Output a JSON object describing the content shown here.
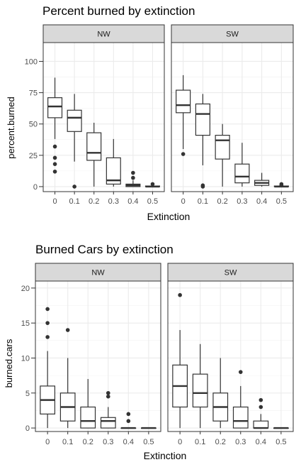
{
  "chart_data": [
    {
      "type": "boxplot",
      "title": "Percent burned by extinction",
      "xlabel": "Extinction",
      "ylabel": "percent.burned",
      "categories": [
        "0",
        "0.1",
        "0.2",
        "0.3",
        "0.4",
        "0.5"
      ],
      "ylim": [
        -4,
        115
      ],
      "yticks": [
        0,
        25,
        50,
        75,
        100
      ],
      "yticklabels": [
        "0",
        "25",
        "50",
        "75",
        "100"
      ],
      "grid": true,
      "facets": [
        {
          "name": "NW",
          "boxes": [
            {
              "category": "0",
              "whisker_low": 38,
              "q1": 55,
              "median": 64,
              "q3": 71,
              "whisker_high": 87,
              "outliers": [
                32,
                23,
                18,
                12
              ]
            },
            {
              "category": "0.1",
              "whisker_low": 20,
              "q1": 44,
              "median": 55,
              "q3": 61,
              "whisker_high": 74,
              "outliers": [
                0
              ]
            },
            {
              "category": "0.2",
              "whisker_low": 0,
              "q1": 21,
              "median": 27,
              "q3": 43,
              "whisker_high": 51,
              "outliers": []
            },
            {
              "category": "0.3",
              "whisker_low": 0,
              "q1": 2,
              "median": 5,
              "q3": 23,
              "whisker_high": 38,
              "outliers": []
            },
            {
              "category": "0.4",
              "whisker_low": 0,
              "q1": 0,
              "median": 1,
              "q3": 2,
              "whisker_high": 5,
              "outliers": [
                7,
                11
              ]
            },
            {
              "category": "0.5",
              "whisker_low": 0,
              "q1": 0,
              "median": 0,
              "q3": 0.5,
              "whisker_high": 1,
              "outliers": [
                2
              ]
            }
          ]
        },
        {
          "name": "SW",
          "boxes": [
            {
              "category": "0",
              "whisker_low": 30,
              "q1": 59,
              "median": 65,
              "q3": 77,
              "whisker_high": 89,
              "outliers": [
                26
              ]
            },
            {
              "category": "0.1",
              "whisker_low": 17,
              "q1": 41,
              "median": 58,
              "q3": 66,
              "whisker_high": 74,
              "outliers": [
                0,
                1
              ]
            },
            {
              "category": "0.2",
              "whisker_low": 0,
              "q1": 22,
              "median": 37,
              "q3": 41,
              "whisker_high": 50,
              "outliers": []
            },
            {
              "category": "0.3",
              "whisker_low": 0,
              "q1": 3,
              "median": 8,
              "q3": 18,
              "whisker_high": 35,
              "outliers": []
            },
            {
              "category": "0.4",
              "whisker_low": 0,
              "q1": 1,
              "median": 3,
              "q3": 5,
              "whisker_high": 11,
              "outliers": []
            },
            {
              "category": "0.5",
              "whisker_low": 0,
              "q1": 0,
              "median": 0,
              "q3": 0.5,
              "whisker_high": 1,
              "outliers": [
                1,
                2
              ]
            }
          ]
        }
      ]
    },
    {
      "type": "boxplot",
      "title": "Burned Cars by extinction",
      "xlabel": "Extinction",
      "ylabel": "burned.cars",
      "categories": [
        "0",
        "0.1",
        "0.2",
        "0.3",
        "0.4",
        "0.5"
      ],
      "ylim": [
        -0.5,
        21
      ],
      "yticks": [
        0,
        5,
        10,
        15,
        20
      ],
      "yticklabels": [
        "0",
        "5",
        "10",
        "15",
        "20"
      ],
      "grid": true,
      "facets": [
        {
          "name": "NW",
          "boxes": [
            {
              "category": "0",
              "whisker_low": 0,
              "q1": 2,
              "median": 4,
              "q3": 6,
              "whisker_high": 11,
              "outliers": [
                13,
                15,
                17
              ]
            },
            {
              "category": "0.1",
              "whisker_low": 0,
              "q1": 1,
              "median": 3,
              "q3": 5,
              "whisker_high": 10,
              "outliers": [
                14
              ]
            },
            {
              "category": "0.2",
              "whisker_low": 0,
              "q1": 0,
              "median": 1,
              "q3": 3,
              "whisker_high": 7,
              "outliers": []
            },
            {
              "category": "0.3",
              "whisker_low": 0,
              "q1": 0,
              "median": 1,
              "q3": 1.5,
              "whisker_high": 3,
              "outliers": [
                4.5,
                5
              ]
            },
            {
              "category": "0.4",
              "whisker_low": 0,
              "q1": 0,
              "median": 0,
              "q3": 0,
              "whisker_high": 0,
              "outliers": [
                1,
                2
              ]
            },
            {
              "category": "0.5",
              "whisker_low": 0,
              "q1": 0,
              "median": 0,
              "q3": 0,
              "whisker_high": 0,
              "outliers": []
            }
          ]
        },
        {
          "name": "SW",
          "boxes": [
            {
              "category": "0",
              "whisker_low": 0,
              "q1": 3,
              "median": 6,
              "q3": 9,
              "whisker_high": 14,
              "outliers": [
                19
              ]
            },
            {
              "category": "0.1",
              "whisker_low": 0,
              "q1": 3,
              "median": 5,
              "q3": 7.7,
              "whisker_high": 12,
              "outliers": []
            },
            {
              "category": "0.2",
              "whisker_low": 0,
              "q1": 1,
              "median": 3,
              "q3": 5,
              "whisker_high": 10,
              "outliers": []
            },
            {
              "category": "0.3",
              "whisker_low": 0,
              "q1": 0,
              "median": 1,
              "q3": 3,
              "whisker_high": 6,
              "outliers": [
                8
              ]
            },
            {
              "category": "0.4",
              "whisker_low": 0,
              "q1": 0,
              "median": 0,
              "q3": 1,
              "whisker_high": 2,
              "outliers": [
                3,
                4
              ]
            },
            {
              "category": "0.5",
              "whisker_low": 0,
              "q1": 0,
              "median": 0,
              "q3": 0,
              "whisker_high": 0,
              "outliers": []
            }
          ]
        }
      ]
    }
  ]
}
